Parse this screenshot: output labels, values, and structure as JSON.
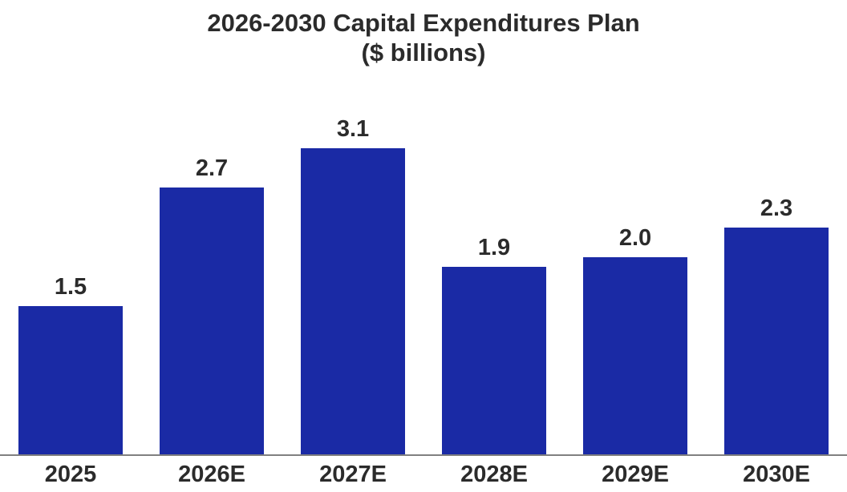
{
  "chart_data": {
    "type": "bar",
    "title": "2026-2030 Capital Expenditures Plan",
    "subtitle": "($ billions)",
    "categories": [
      "2025",
      "2026E",
      "2027E",
      "2028E",
      "2029E",
      "2030E"
    ],
    "values": [
      1.5,
      2.7,
      3.1,
      1.9,
      2.0,
      2.3
    ],
    "value_labels": [
      "1.5",
      "2.7",
      "3.1",
      "1.9",
      "2.0",
      "2.3"
    ],
    "xlabel": "",
    "ylabel": "",
    "ylim": [
      0,
      3.1
    ],
    "grid": false,
    "legend": false,
    "value_labels_position": "above-bars",
    "colors": {
      "bar": "#1a2aa5",
      "text": "#2b2b2b",
      "axis_line": "#808080",
      "background": "#ffffff"
    }
  }
}
